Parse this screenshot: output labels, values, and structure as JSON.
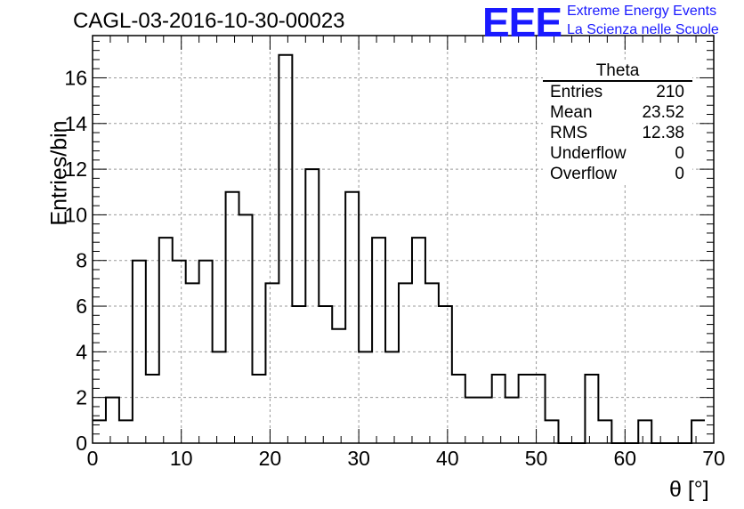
{
  "header": {
    "run_title": "CAGL-03-2016-10-30-00023",
    "logo_text": "EEE",
    "logo_line1": "Extreme Energy Events",
    "logo_line2": "La Scienza nelle Scuole"
  },
  "stats_box": {
    "title": "Theta",
    "rows": [
      {
        "label": "Entries",
        "value": "210"
      },
      {
        "label": "Mean",
        "value": "23.52"
      },
      {
        "label": "RMS",
        "value": "12.38"
      },
      {
        "label": "Underflow",
        "value": "0"
      },
      {
        "label": "Overflow",
        "value": "0"
      }
    ]
  },
  "colors": {
    "logo": "#1a1aff",
    "line": "#000000",
    "grid": "#9a9a9a"
  },
  "chart_data": {
    "type": "bar",
    "style": "step-histogram",
    "title": "CAGL-03-2016-10-30-00023",
    "xlabel": "θ [°]",
    "ylabel": "Entries/bin",
    "xlim": [
      0,
      70
    ],
    "ylim": [
      0,
      17.85
    ],
    "bin_width": 1.5,
    "bin_start": 0,
    "x_ticks": [
      0,
      10,
      20,
      30,
      40,
      50,
      60,
      70
    ],
    "y_ticks": [
      0,
      2,
      4,
      6,
      8,
      10,
      12,
      14,
      16
    ],
    "grid": true,
    "counts": [
      1,
      2,
      1,
      8,
      3,
      9,
      8,
      7,
      8,
      4,
      11,
      10,
      3,
      7,
      17,
      6,
      12,
      6,
      5,
      11,
      4,
      9,
      4,
      7,
      9,
      7,
      6,
      3,
      2,
      2,
      3,
      2,
      3,
      3,
      1,
      0,
      0,
      3,
      1,
      0,
      0,
      1,
      0,
      0,
      0,
      1
    ]
  }
}
